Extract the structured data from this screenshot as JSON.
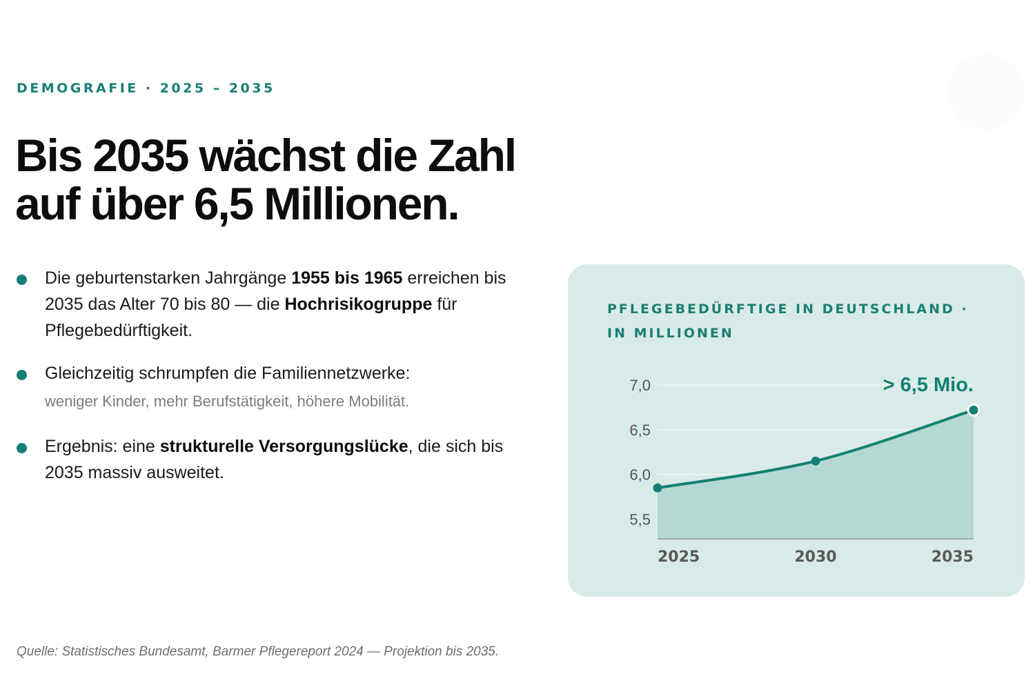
{
  "kicker": "DEMOGRAFIE · 2025 – 2035",
  "headline": {
    "line1": "Bis 2035 wächst die Zahl",
    "line2": "auf über 6,5 Millionen."
  },
  "bullets": [
    {
      "t1": "Die geburtenstarken Jahrgänge ",
      "b1": "1955 bis 1965",
      "t2": " erreichen bis 2035 das Alter 70 bis 80 — die ",
      "b2": "Hochrisikogruppe",
      "t3": " für Pflegebedürftigkeit."
    },
    {
      "text": "Gleichzeitig schrumpfen die Familiennetzwerke:",
      "sub": "weniger Kinder, mehr Berufstätigkeit, höhere Mobilität."
    },
    {
      "t1": "Ergebnis: eine ",
      "b1": "strukturelle Versorgungslücke",
      "t2": ", die sich bis 2035 massiv ausweitet."
    }
  ],
  "card_title": "PFLEGEBEDÜRFTIGE IN DEUTSCHLAND · IN MILLIONEN",
  "source": "Quelle: Statistisches Bundesamt, Barmer Pflegereport 2024 — Projektion bis 2035.",
  "colors": {
    "accent": "#138073",
    "card_bg": "#d9ebe8",
    "area_fill": "#b2d8d2"
  },
  "chart_data": {
    "type": "area",
    "x": [
      2025,
      2030,
      2035
    ],
    "values": [
      5.85,
      6.15,
      6.72
    ],
    "yticks": [
      "5,5",
      "6,0",
      "6,5",
      "7,0"
    ],
    "ytick_values": [
      5.5,
      6.0,
      6.5,
      7.0
    ],
    "xticks": [
      "2025",
      "2030",
      "2035"
    ],
    "ylim": [
      5.28,
      7.0
    ],
    "annotation": "> 6,5 Mio.",
    "grid": true
  }
}
